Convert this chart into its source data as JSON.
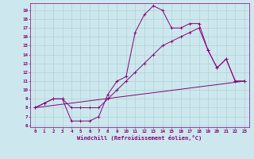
{
  "title": "",
  "xlabel": "Windchill (Refroidissement éolien,°C)",
  "bg_color": "#cce8ee",
  "line_color": "#880077",
  "grid_color": "#aacccc",
  "ylim": [
    5.8,
    19.8
  ],
  "xlim": [
    -0.5,
    23.5
  ],
  "yticks": [
    6,
    7,
    8,
    9,
    10,
    11,
    12,
    13,
    14,
    15,
    16,
    17,
    18,
    19
  ],
  "xticks": [
    0,
    1,
    2,
    3,
    4,
    5,
    6,
    7,
    8,
    9,
    10,
    11,
    12,
    13,
    14,
    15,
    16,
    17,
    18,
    19,
    20,
    21,
    22,
    23
  ],
  "line1_x": [
    0,
    1,
    2,
    3,
    4,
    5,
    6,
    7,
    8,
    9,
    10,
    11,
    12,
    13,
    14,
    15,
    16,
    17,
    18,
    19,
    20,
    21,
    22,
    23
  ],
  "line1_y": [
    8,
    8.5,
    9,
    9,
    6.5,
    6.5,
    6.5,
    7,
    9.5,
    11,
    11.5,
    16.5,
    18.5,
    19.5,
    19,
    17,
    17,
    17.5,
    17.5,
    14.5,
    12.5,
    13.5,
    11,
    11
  ],
  "line2_x": [
    0,
    1,
    2,
    3,
    4,
    5,
    6,
    7,
    8,
    9,
    10,
    11,
    12,
    13,
    14,
    15,
    16,
    17,
    18,
    19,
    20,
    21,
    22,
    23
  ],
  "line2_y": [
    8,
    8.5,
    9,
    9,
    8,
    8,
    8,
    8,
    9,
    10,
    11,
    12,
    13,
    14,
    15,
    15.5,
    16,
    16.5,
    17,
    14.5,
    12.5,
    13.5,
    11,
    11
  ],
  "line3_x": [
    0,
    23
  ],
  "line3_y": [
    8,
    11
  ],
  "label_fontsize": 4.5,
  "tick_fontsize": 4.2,
  "xlabel_fontsize": 5.0,
  "linewidth": 0.7,
  "markersize": 2.5,
  "markeredgewidth": 0.6
}
